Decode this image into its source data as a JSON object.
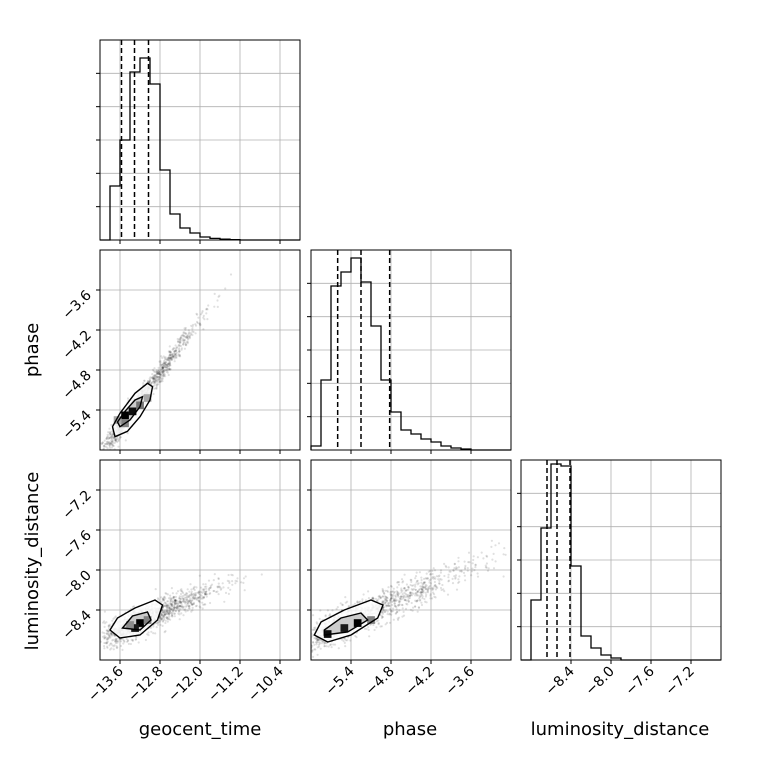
{
  "chart_data": {
    "type": "corner",
    "parameters": [
      "geocent_time",
      "phase",
      "luminosity_distance"
    ],
    "xlabels": [
      "geocent_time",
      "phase",
      "luminosity_distance"
    ],
    "ylabels": [
      "",
      "phase",
      "luminosity_distance"
    ],
    "grid": true,
    "colors": {
      "line": "#000000",
      "points": "#000000",
      "grid": "#b0b0b0"
    },
    "ranges": {
      "geocent_time": [
        -14.0,
        -10.0
      ],
      "phase": [
        -6.0,
        -3.0
      ],
      "luminosity_distance": [
        -8.9,
        -6.9
      ]
    },
    "ticks": {
      "geocent_time": {
        "values": [
          -13.6,
          -12.8,
          -12.0,
          -11.2,
          -10.4
        ],
        "labels": [
          "−13.6",
          "−12.8",
          "−12.0",
          "−11.2",
          "−10.4"
        ]
      },
      "phase": {
        "values": [
          -5.4,
          -4.8,
          -4.2,
          -3.6
        ],
        "labels": [
          "−5.4",
          "−4.8",
          "−4.2",
          "−3.6"
        ]
      },
      "luminosity_distance": {
        "values": [
          -8.4,
          -8.0,
          -7.6,
          -7.2
        ],
        "labels": [
          "−8.4",
          "−8.0",
          "−7.6",
          "−7.2"
        ]
      }
    },
    "histograms": [
      {
        "parameter": "geocent_time",
        "bin_edges": [
          -14.0,
          -13.8,
          -13.6,
          -13.4,
          -13.2,
          -13.0,
          -12.8,
          -12.6,
          -12.4,
          -12.2,
          -12.0,
          -11.8,
          -11.6,
          -11.4,
          -11.2,
          -11.0,
          -10.8,
          -10.6,
          -10.4,
          -10.2,
          -10.0
        ],
        "counts": [
          0.0,
          0.27,
          0.5,
          0.84,
          0.91,
          0.78,
          0.35,
          0.13,
          0.06,
          0.035,
          0.015,
          0.008,
          0.004,
          0.002,
          0.0,
          0.0,
          0.0,
          0.0,
          0.0,
          0.0
        ],
        "quantiles": [
          -13.57,
          -13.31,
          -13.03
        ]
      },
      {
        "parameter": "phase",
        "bin_edges": [
          -6.0,
          -5.85,
          -5.7,
          -5.55,
          -5.4,
          -5.25,
          -5.1,
          -4.95,
          -4.8,
          -4.65,
          -4.5,
          -4.35,
          -4.2,
          -4.05,
          -3.9,
          -3.75,
          -3.6,
          -3.45,
          -3.3,
          -3.15,
          -3.0
        ],
        "counts": [
          0.02,
          0.35,
          0.82,
          0.89,
          0.96,
          0.84,
          0.62,
          0.35,
          0.19,
          0.1,
          0.08,
          0.055,
          0.04,
          0.02,
          0.01,
          0.005,
          0.0,
          0.0,
          0.0,
          0.0
        ],
        "quantiles": [
          -5.6,
          -5.25,
          -4.82
        ]
      },
      {
        "parameter": "luminosity_distance",
        "bin_edges": [
          -8.9,
          -8.8,
          -8.7,
          -8.6,
          -8.5,
          -8.4,
          -8.3,
          -8.2,
          -8.1,
          -8.0,
          -7.9,
          -7.8,
          -7.7,
          -7.6,
          -7.5,
          -7.4,
          -7.3,
          -7.2,
          -7.1,
          -7.0,
          -6.9
        ],
        "counts": [
          0.0,
          0.3,
          0.66,
          0.98,
          0.97,
          0.47,
          0.12,
          0.06,
          0.025,
          0.01,
          0.0,
          0.0,
          0.0,
          0.0,
          0.0,
          0.0,
          0.0,
          0.0,
          0.0,
          0.0
        ],
        "quantiles": [
          -8.64,
          -8.54,
          -8.41
        ]
      }
    ],
    "pairs": [
      {
        "x": "geocent_time",
        "y": "phase",
        "density_cells": [
          {
            "x": -13.5,
            "y": -5.48,
            "v": 1.0
          },
          {
            "x": -13.35,
            "y": -5.42,
            "v": 0.95
          },
          {
            "x": -13.2,
            "y": -5.33,
            "v": 0.55
          },
          {
            "x": -13.05,
            "y": -5.22,
            "v": 0.35
          },
          {
            "x": -13.5,
            "y": -5.6,
            "v": 0.5
          },
          {
            "x": -13.65,
            "y": -5.55,
            "v": 0.35
          }
        ],
        "contours": [
          [
            [
              -13.7,
              -5.8
            ],
            [
              -13.45,
              -5.72
            ],
            [
              -13.2,
              -5.5
            ],
            [
              -13.0,
              -5.25
            ],
            [
              -12.95,
              -5.05
            ],
            [
              -13.05,
              -5.0
            ],
            [
              -13.3,
              -5.15
            ],
            [
              -13.6,
              -5.45
            ],
            [
              -13.75,
              -5.65
            ],
            [
              -13.7,
              -5.8
            ]
          ],
          [
            [
              -13.6,
              -5.65
            ],
            [
              -13.4,
              -5.55
            ],
            [
              -13.2,
              -5.35
            ],
            [
              -13.15,
              -5.2
            ],
            [
              -13.3,
              -5.25
            ],
            [
              -13.5,
              -5.42
            ],
            [
              -13.65,
              -5.58
            ],
            [
              -13.6,
              -5.65
            ]
          ]
        ],
        "scatter_center": [
          -13.3,
          -5.35
        ],
        "scatter_major": [
          1.0,
          1.0
        ],
        "scatter_sigma": [
          0.32,
          0.08
        ]
      },
      {
        "x": "geocent_time",
        "y": "luminosity_distance",
        "density_cells": [
          {
            "x": -13.2,
            "y": -8.53,
            "v": 1.0
          },
          {
            "x": -13.3,
            "y": -8.58,
            "v": 0.9
          },
          {
            "x": -13.05,
            "y": -8.5,
            "v": 0.5
          },
          {
            "x": -13.4,
            "y": -8.55,
            "v": 0.45
          }
        ],
        "contours": [
          [
            [
              -13.8,
              -8.6
            ],
            [
              -13.6,
              -8.68
            ],
            [
              -13.2,
              -8.65
            ],
            [
              -12.85,
              -8.5
            ],
            [
              -12.75,
              -8.35
            ],
            [
              -12.9,
              -8.3
            ],
            [
              -13.3,
              -8.38
            ],
            [
              -13.65,
              -8.48
            ],
            [
              -13.8,
              -8.6
            ]
          ],
          [
            [
              -13.55,
              -8.58
            ],
            [
              -13.2,
              -8.6
            ],
            [
              -12.98,
              -8.5
            ],
            [
              -13.05,
              -8.42
            ],
            [
              -13.35,
              -8.46
            ],
            [
              -13.55,
              -8.58
            ]
          ]
        ],
        "scatter_center": [
          -13.15,
          -8.5
        ],
        "scatter_major": [
          1.0,
          0.22
        ],
        "scatter_sigma": [
          0.38,
          0.07
        ]
      },
      {
        "x": "phase",
        "y": "luminosity_distance",
        "density_cells": [
          {
            "x": -5.3,
            "y": -8.53,
            "v": 1.0
          },
          {
            "x": -5.5,
            "y": -8.58,
            "v": 0.9
          },
          {
            "x": -5.75,
            "y": -8.64,
            "v": 0.95
          },
          {
            "x": -5.1,
            "y": -8.5,
            "v": 0.5
          }
        ],
        "contours": [
          [
            [
              -5.95,
              -8.65
            ],
            [
              -5.75,
              -8.72
            ],
            [
              -5.4,
              -8.65
            ],
            [
              -5.0,
              -8.48
            ],
            [
              -4.92,
              -8.35
            ],
            [
              -5.1,
              -8.3
            ],
            [
              -5.5,
              -8.4
            ],
            [
              -5.85,
              -8.52
            ],
            [
              -5.95,
              -8.65
            ]
          ],
          [
            [
              -5.8,
              -8.65
            ],
            [
              -5.45,
              -8.62
            ],
            [
              -5.15,
              -8.5
            ],
            [
              -5.25,
              -8.43
            ],
            [
              -5.55,
              -8.48
            ],
            [
              -5.8,
              -8.6
            ],
            [
              -5.8,
              -8.65
            ]
          ]
        ],
        "scatter_center": [
          -5.3,
          -8.48
        ],
        "scatter_major": [
          1.0,
          0.3
        ],
        "scatter_sigma": [
          0.45,
          0.08
        ]
      }
    ]
  }
}
